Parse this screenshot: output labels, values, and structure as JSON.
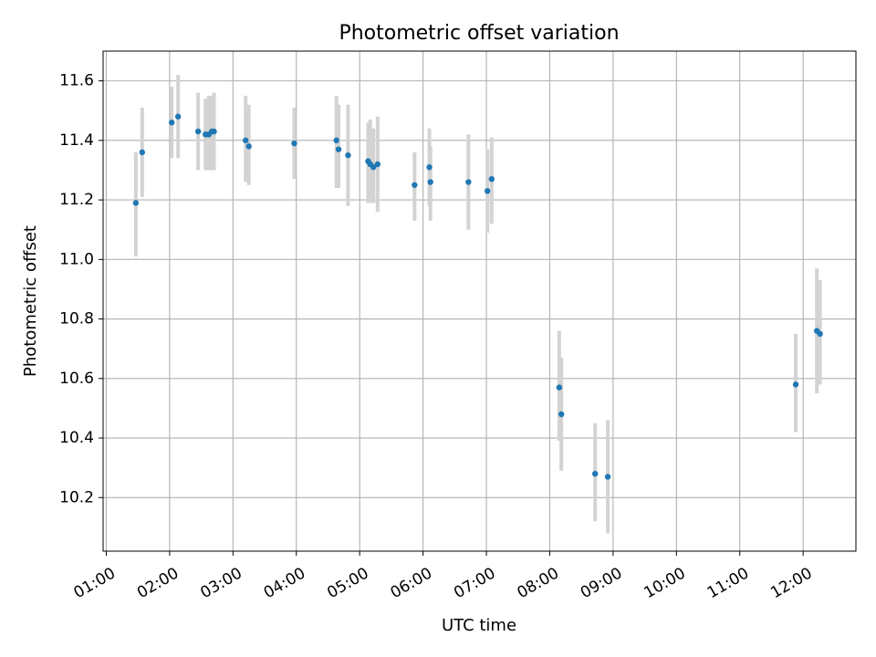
{
  "chart_data": {
    "type": "scatter",
    "title": "Photometric offset variation",
    "xlabel": "UTC time",
    "ylabel": "Photometric offset",
    "xlim": [
      "00:57",
      "12:50"
    ],
    "ylim": [
      10.02,
      11.7
    ],
    "grid": true,
    "x_ticks": [
      "01:00",
      "02:00",
      "03:00",
      "04:00",
      "05:00",
      "06:00",
      "07:00",
      "08:00",
      "09:00",
      "10:00",
      "11:00",
      "12:00"
    ],
    "y_ticks": [
      10.2,
      10.4,
      10.6,
      10.8,
      11.0,
      11.2,
      11.4,
      11.6
    ],
    "colors": {
      "points": "#1f77b4",
      "error_bars": "#d3d3d3",
      "grid": "#b0b0b0"
    },
    "series": [
      {
        "points": [
          {
            "x": "01:28",
            "y": 11.19,
            "yerr": [
              11.01,
              11.36
            ]
          },
          {
            "x": "01:34",
            "y": 11.36,
            "yerr": [
              11.21,
              11.51
            ]
          },
          {
            "x": "02:02",
            "y": 11.46,
            "yerr": [
              11.34,
              11.58
            ]
          },
          {
            "x": "02:08",
            "y": 11.48,
            "yerr": [
              11.34,
              11.62
            ]
          },
          {
            "x": "02:27",
            "y": 11.43,
            "yerr": [
              11.3,
              11.56
            ]
          },
          {
            "x": "02:34",
            "y": 11.42,
            "yerr": [
              11.3,
              11.54
            ]
          },
          {
            "x": "02:37",
            "y": 11.42,
            "yerr": [
              11.3,
              11.55
            ]
          },
          {
            "x": "02:40",
            "y": 11.43,
            "yerr": [
              11.3,
              11.55
            ]
          },
          {
            "x": "02:42",
            "y": 11.43,
            "yerr": [
              11.3,
              11.56
            ]
          },
          {
            "x": "03:12",
            "y": 11.4,
            "yerr": [
              11.26,
              11.55
            ]
          },
          {
            "x": "03:15",
            "y": 11.38,
            "yerr": [
              11.25,
              11.52
            ]
          },
          {
            "x": "03:58",
            "y": 11.39,
            "yerr": [
              11.27,
              11.51
            ]
          },
          {
            "x": "04:38",
            "y": 11.4,
            "yerr": [
              11.24,
              11.55
            ]
          },
          {
            "x": "04:40",
            "y": 11.37,
            "yerr": [
              11.24,
              11.52
            ]
          },
          {
            "x": "04:49",
            "y": 11.35,
            "yerr": [
              11.18,
              11.52
            ]
          },
          {
            "x": "05:08",
            "y": 11.33,
            "yerr": [
              11.19,
              11.46
            ]
          },
          {
            "x": "05:10",
            "y": 11.32,
            "yerr": [
              11.19,
              11.47
            ]
          },
          {
            "x": "05:13",
            "y": 11.31,
            "yerr": [
              11.19,
              11.44
            ]
          },
          {
            "x": "05:17",
            "y": 11.32,
            "yerr": [
              11.16,
              11.48
            ]
          },
          {
            "x": "05:52",
            "y": 11.25,
            "yerr": [
              11.13,
              11.36
            ]
          },
          {
            "x": "06:06",
            "y": 11.31,
            "yerr": [
              11.18,
              11.44
            ]
          },
          {
            "x": "06:07",
            "y": 11.26,
            "yerr": [
              11.13,
              11.38
            ]
          },
          {
            "x": "06:43",
            "y": 11.26,
            "yerr": [
              11.1,
              11.42
            ]
          },
          {
            "x": "07:01",
            "y": 11.23,
            "yerr": [
              11.09,
              11.37
            ]
          },
          {
            "x": "07:05",
            "y": 11.27,
            "yerr": [
              11.12,
              11.41
            ]
          },
          {
            "x": "08:09",
            "y": 10.57,
            "yerr": [
              10.39,
              10.76
            ]
          },
          {
            "x": "08:11",
            "y": 10.48,
            "yerr": [
              10.29,
              10.67
            ]
          },
          {
            "x": "08:43",
            "y": 10.28,
            "yerr": [
              10.12,
              10.45
            ]
          },
          {
            "x": "08:55",
            "y": 10.27,
            "yerr": [
              10.08,
              10.46
            ]
          },
          {
            "x": "11:53",
            "y": 10.58,
            "yerr": [
              10.42,
              10.75
            ]
          },
          {
            "x": "12:13",
            "y": 10.76,
            "yerr": [
              10.55,
              10.97
            ]
          },
          {
            "x": "12:16",
            "y": 10.75,
            "yerr": [
              10.58,
              10.93
            ]
          }
        ]
      }
    ]
  }
}
